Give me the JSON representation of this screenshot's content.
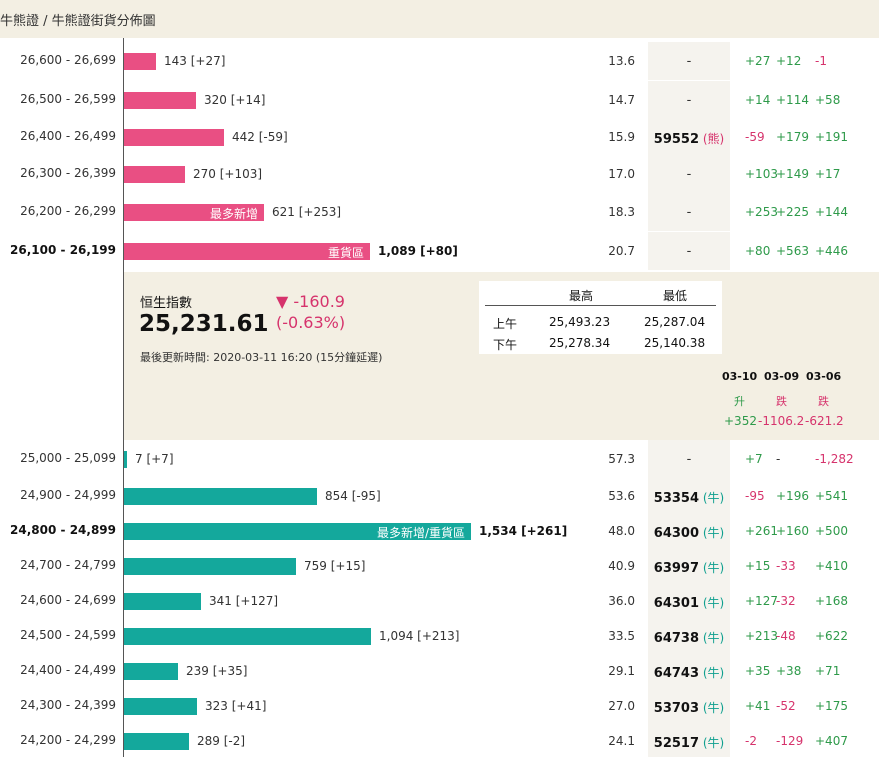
{
  "breadcrumb": "牛熊證 / 牛熊證街貨分佈圖",
  "colors": {
    "bear": "#e94f83",
    "bull": "#14a89c",
    "up": "#2e9a4a",
    "down": "#d6336c"
  },
  "bear_rows": [
    {
      "range": "26,600 - 26,699",
      "bold": false,
      "volume": 143,
      "label": "143 [+27]",
      "inbar": "",
      "dist": "13.6",
      "code": "-",
      "tag": "",
      "c1": "+27",
      "c2": "+12",
      "c3": "-1"
    },
    {
      "range": "26,500 - 26,599",
      "bold": false,
      "volume": 320,
      "label": "320 [+14]",
      "inbar": "",
      "dist": "14.7",
      "code": "-",
      "tag": "",
      "c1": "+14",
      "c2": "+114",
      "c3": "+58"
    },
    {
      "range": "26,400 - 26,499",
      "bold": false,
      "volume": 442,
      "label": "442 [-59]",
      "inbar": "",
      "dist": "15.9",
      "code": "59552",
      "tag": "(熊)",
      "c1": "-59",
      "c2": "+179",
      "c3": "+191"
    },
    {
      "range": "26,300 - 26,399",
      "bold": false,
      "volume": 270,
      "label": "270 [+103]",
      "inbar": "",
      "dist": "17.0",
      "code": "-",
      "tag": "",
      "c1": "+103",
      "c2": "+149",
      "c3": "+17"
    },
    {
      "range": "26,200 - 26,299",
      "bold": false,
      "volume": 621,
      "label": "621 [+253]",
      "inbar": "最多新增",
      "dist": "18.3",
      "code": "-",
      "tag": "",
      "c1": "+253",
      "c2": "+225",
      "c3": "+144"
    },
    {
      "range": "26,100 - 26,199",
      "bold": true,
      "volume": 1089,
      "label": "1,089 [+80]",
      "inbar": "重貨區",
      "dist": "20.7",
      "code": "-",
      "tag": "",
      "c1": "+80",
      "c2": "+563",
      "c3": "+446"
    }
  ],
  "index": {
    "name": "恒生指數",
    "value": "25,231.61",
    "change": "▼ -160.9",
    "pct": "(-0.63%)",
    "updated": "最後更新時間: 2020-03-11 16:20 (15分鐘延遲)"
  },
  "high_low": {
    "headers": [
      "最高",
      "最低"
    ],
    "rows": [
      {
        "session": "上午",
        "high": "25,493.23",
        "low": "25,287.04"
      },
      {
        "session": "下午",
        "high": "25,278.34",
        "low": "25,140.38"
      }
    ]
  },
  "daily": [
    {
      "date": "03-10",
      "dir": "升",
      "value": "+352",
      "trend": "up"
    },
    {
      "date": "03-09",
      "dir": "跌",
      "value": "-1106.2",
      "trend": "down"
    },
    {
      "date": "03-06",
      "dir": "跌",
      "value": "-621.2",
      "trend": "down"
    }
  ],
  "bull_rows": [
    {
      "range": "25,000 - 25,099",
      "bold": false,
      "volume": 7,
      "label": "7 [+7]",
      "inbar": "",
      "dist": "57.3",
      "code": "-",
      "tag": "",
      "c1": "+7",
      "c2": "-",
      "c3": "-1,282"
    },
    {
      "range": "24,900 - 24,999",
      "bold": false,
      "volume": 854,
      "label": "854 [-95]",
      "inbar": "",
      "dist": "53.6",
      "code": "53354",
      "tag": "(牛)",
      "c1": "-95",
      "c2": "+196",
      "c3": "+541"
    },
    {
      "range": "24,800 - 24,899",
      "bold": true,
      "volume": 1534,
      "label": "1,534 [+261]",
      "inbar": "最多新增/重貨區",
      "dist": "48.0",
      "code": "64300",
      "tag": "(牛)",
      "c1": "+261",
      "c2": "+160",
      "c3": "+500"
    },
    {
      "range": "24,700 - 24,799",
      "bold": false,
      "volume": 759,
      "label": "759 [+15]",
      "inbar": "",
      "dist": "40.9",
      "code": "63997",
      "tag": "(牛)",
      "c1": "+15",
      "c2": "-33",
      "c3": "+410"
    },
    {
      "range": "24,600 - 24,699",
      "bold": false,
      "volume": 341,
      "label": "341 [+127]",
      "inbar": "",
      "dist": "36.0",
      "code": "64301",
      "tag": "(牛)",
      "c1": "+127",
      "c2": "-32",
      "c3": "+168"
    },
    {
      "range": "24,500 - 24,599",
      "bold": false,
      "volume": 1094,
      "label": "1,094 [+213]",
      "inbar": "",
      "dist": "33.5",
      "code": "64738",
      "tag": "(牛)",
      "c1": "+213",
      "c2": "-48",
      "c3": "+622"
    },
    {
      "range": "24,400 - 24,499",
      "bold": false,
      "volume": 239,
      "label": "239 [+35]",
      "inbar": "",
      "dist": "29.1",
      "code": "64743",
      "tag": "(牛)",
      "c1": "+35",
      "c2": "+38",
      "c3": "+71"
    },
    {
      "range": "24,300 - 24,399",
      "bold": false,
      "volume": 323,
      "label": "323 [+41]",
      "inbar": "",
      "dist": "27.0",
      "code": "53703",
      "tag": "(牛)",
      "c1": "+41",
      "c2": "-52",
      "c3": "+175"
    },
    {
      "range": "24,200 - 24,299",
      "bold": false,
      "volume": 289,
      "label": "289 [-2]",
      "inbar": "",
      "dist": "24.1",
      "code": "52517",
      "tag": "(牛)",
      "c1": "-2",
      "c2": "-129",
      "c3": "+407"
    }
  ]
}
